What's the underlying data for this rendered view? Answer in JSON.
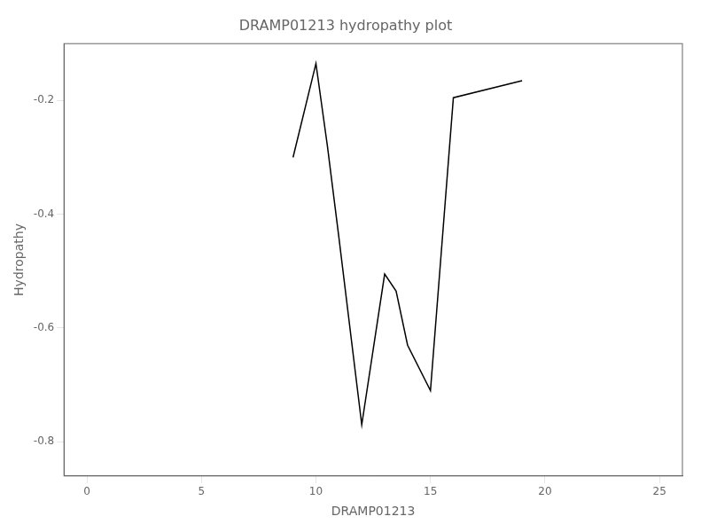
{
  "chart_data": {
    "type": "line",
    "title": "DRAMP01213 hydropathy plot",
    "xlabel": "DRAMP01213",
    "ylabel": "Hydropathy",
    "x": [
      9.0,
      10.0,
      10.5,
      11.0,
      12.0,
      13.0,
      13.5,
      14.0,
      15.0,
      16.0,
      19.0
    ],
    "values": [
      -0.3,
      -0.135,
      -0.28,
      -0.44,
      -0.77,
      -0.505,
      -0.535,
      -0.63,
      -0.71,
      -0.195,
      -0.165
    ],
    "color": "#000000",
    "xlim": [
      -1,
      26
    ],
    "ylim": [
      -0.86,
      -0.1
    ],
    "xticks": [
      0,
      5,
      10,
      15,
      20,
      25
    ],
    "yticks": [
      -0.8,
      -0.6,
      -0.4,
      -0.2
    ],
    "grid": false
  }
}
